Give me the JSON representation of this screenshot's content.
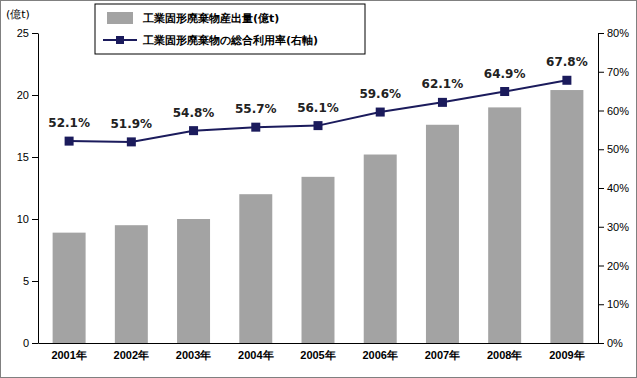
{
  "chart_data": {
    "type": "bar",
    "ylabel": "(億t)",
    "categories": [
      "2001年",
      "2002年",
      "2003年",
      "2004年",
      "2005年",
      "2006年",
      "2007年",
      "2008年",
      "2009年"
    ],
    "ylim": [
      0,
      25
    ],
    "yticks": [
      0,
      5,
      10,
      15,
      20,
      25
    ],
    "y2lim": [
      0,
      80
    ],
    "y2ticks": [
      {
        "value": 0,
        "label": "0%"
      },
      {
        "value": 10,
        "label": "10%"
      },
      {
        "value": 20,
        "label": "20%"
      },
      {
        "value": 30,
        "label": "30%"
      },
      {
        "value": 40,
        "label": "40%"
      },
      {
        "value": 50,
        "label": "50%"
      },
      {
        "value": 60,
        "label": "60%"
      },
      {
        "value": 70,
        "label": "70%"
      },
      {
        "value": 80,
        "label": "80%"
      }
    ],
    "grid": false,
    "legend": "top",
    "series": [
      {
        "name": "工業固形廃棄物産出量(億t)",
        "type": "bar",
        "color": "#a3a3a3",
        "values": [
          8.9,
          9.5,
          10.0,
          12.0,
          13.4,
          15.2,
          17.6,
          19.0,
          20.4
        ]
      },
      {
        "name": "工業固形廃棄物の総合利用率(右軸)",
        "type": "line",
        "axis": "y2",
        "color": "#1b1b5c",
        "marker": "square",
        "data_labels": true,
        "values": [
          52.1,
          51.9,
          54.8,
          55.7,
          56.1,
          59.6,
          62.1,
          64.9,
          67.8
        ],
        "value_labels": [
          "52.1%",
          "51.9%",
          "54.8%",
          "55.7%",
          "56.1%",
          "59.6%",
          "62.1%",
          "64.9%",
          "67.8%"
        ]
      }
    ]
  }
}
